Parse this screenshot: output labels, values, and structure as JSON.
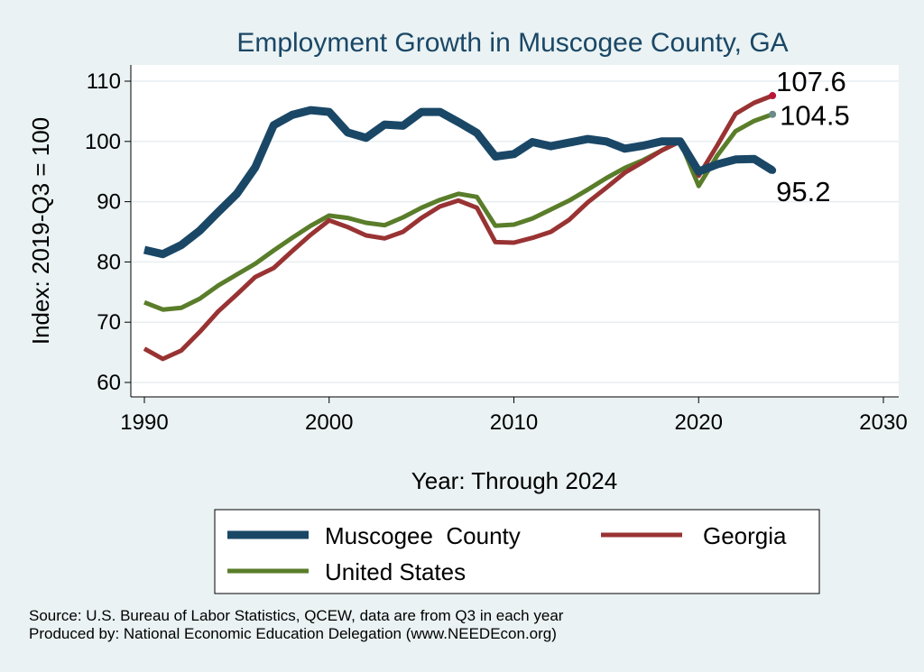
{
  "chart_data": {
    "type": "line",
    "title": "Employment Growth in Muscogee County, GA",
    "xlabel": "Year: Through 2024",
    "ylabel": "Index: 2019-Q3 = 100",
    "xlim": [
      1990,
      2030
    ],
    "ylim": [
      58,
      112
    ],
    "xticks": [
      1990,
      2000,
      2010,
      2020,
      2030
    ],
    "yticks": [
      60,
      70,
      80,
      90,
      100,
      110
    ],
    "grid": true,
    "legend_position": "bottom",
    "x": [
      1990,
      1991,
      1992,
      1993,
      1994,
      1995,
      1996,
      1997,
      1998,
      1999,
      2000,
      2001,
      2002,
      2003,
      2004,
      2005,
      2006,
      2007,
      2008,
      2009,
      2010,
      2011,
      2012,
      2013,
      2014,
      2015,
      2016,
      2017,
      2018,
      2019,
      2020,
      2021,
      2022,
      2023,
      2024
    ],
    "series": [
      {
        "name": "Muscogee  County",
        "color": "#1a4766",
        "values": [
          82.0,
          81.3,
          82.8,
          85.2,
          88.3,
          91.3,
          95.7,
          102.7,
          104.4,
          105.2,
          104.9,
          101.5,
          100.6,
          102.8,
          102.6,
          104.9,
          104.9,
          103.2,
          101.4,
          97.5,
          97.9,
          99.9,
          99.2,
          99.8,
          100.4,
          100.0,
          98.8,
          99.3,
          100.0,
          100.0,
          95.0,
          96.2,
          97.0,
          97.1,
          95.2
        ]
      },
      {
        "name": "Georgia",
        "color": "#993333",
        "values": [
          65.6,
          63.9,
          65.3,
          68.4,
          71.8,
          74.6,
          77.5,
          79.0,
          81.8,
          84.5,
          86.9,
          85.8,
          84.4,
          83.9,
          85.0,
          87.3,
          89.2,
          90.2,
          89.0,
          83.3,
          83.2,
          84.0,
          85.0,
          87.0,
          89.9,
          92.3,
          94.8,
          96.6,
          98.5,
          100.0,
          94.3,
          99.3,
          104.6,
          106.4,
          107.6
        ]
      },
      {
        "name": "United States",
        "color": "#5a7d2a",
        "values": [
          73.3,
          72.1,
          72.4,
          73.9,
          76.1,
          77.9,
          79.7,
          81.9,
          84.0,
          86.0,
          87.7,
          87.3,
          86.5,
          86.1,
          87.4,
          89.0,
          90.3,
          91.3,
          90.8,
          86.0,
          86.2,
          87.2,
          88.7,
          90.2,
          92.0,
          93.9,
          95.6,
          96.9,
          98.5,
          100.0,
          92.6,
          97.6,
          101.7,
          103.4,
          104.5
        ]
      }
    ],
    "end_labels": [
      "95.2",
      "107.6",
      "104.5"
    ],
    "end_label_colors": [
      "#1a4766",
      "#b8173a",
      "#6c8b88"
    ]
  },
  "notes": {
    "source": "Source: U.S. Bureau of Labor Statistics, QCEW, data are from Q3 in each year",
    "producer": "Produced by: National Economic Education Delegation (www.NEEDEcon.org)"
  }
}
